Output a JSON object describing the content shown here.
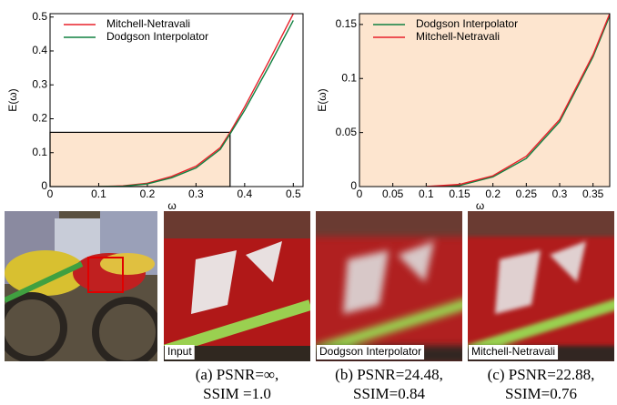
{
  "chart_data": [
    {
      "type": "line",
      "x_label": "ω",
      "y_label": "E(ω)",
      "x": [
        0.1,
        0.15,
        0.2,
        0.25,
        0.3,
        0.35,
        0.37,
        0.4,
        0.45,
        0.5
      ],
      "series": [
        {
          "name": "Mitchell-Netravali",
          "color": "#e8202a",
          "values": [
            0,
            0.002,
            0.01,
            0.03,
            0.06,
            0.115,
            0.16,
            0.235,
            0.37,
            0.51
          ]
        },
        {
          "name": "Dodgson Interpolator",
          "color": "#108040",
          "values": [
            0,
            0.001,
            0.008,
            0.026,
            0.055,
            0.11,
            0.155,
            0.225,
            0.355,
            0.49
          ]
        }
      ],
      "highlight": {
        "x": 0.37,
        "y": 0.16
      },
      "xlim": [
        0,
        0.52
      ],
      "ylim": [
        0,
        0.51
      ],
      "xticks": [
        0,
        0.1,
        0.2,
        0.3,
        0.4,
        0.5
      ],
      "yticks": [
        0,
        0.1,
        0.2,
        0.3,
        0.4,
        0.5
      ]
    },
    {
      "type": "line",
      "x_label": "ω",
      "y_label": "E(ω)",
      "x": [
        0.1,
        0.15,
        0.2,
        0.25,
        0.3,
        0.35,
        0.375
      ],
      "series": [
        {
          "name": "Dodgson Interpolator",
          "color": "#108040",
          "values": [
            0,
            0.001,
            0.009,
            0.026,
            0.06,
            0.12,
            0.158
          ]
        },
        {
          "name": "Mitchell-Netravali",
          "color": "#e8202a",
          "values": [
            0,
            0.002,
            0.01,
            0.028,
            0.062,
            0.122,
            0.16
          ]
        }
      ],
      "background": "#fde5cf",
      "xlim": [
        0,
        0.375
      ],
      "ylim": [
        0,
        0.16
      ],
      "xticks": [
        0,
        0.05,
        0.1,
        0.15,
        0.2,
        0.25,
        0.3,
        0.35
      ],
      "yticks": [
        0,
        0.05,
        0.1,
        0.15
      ]
    }
  ],
  "panels": [
    {
      "label": null,
      "caption": null
    },
    {
      "label": "Input",
      "caption": [
        "(a) PSNR=∞,",
        "SSIM =1.0"
      ]
    },
    {
      "label": "Dodgson Interpolator",
      "caption": [
        "(b) PSNR=24.48,",
        "SSIM=0.84"
      ]
    },
    {
      "label": "Mitchell-Netravali",
      "caption": [
        "(c) PSNR=22.88,",
        "SSIM=0.76"
      ]
    }
  ]
}
